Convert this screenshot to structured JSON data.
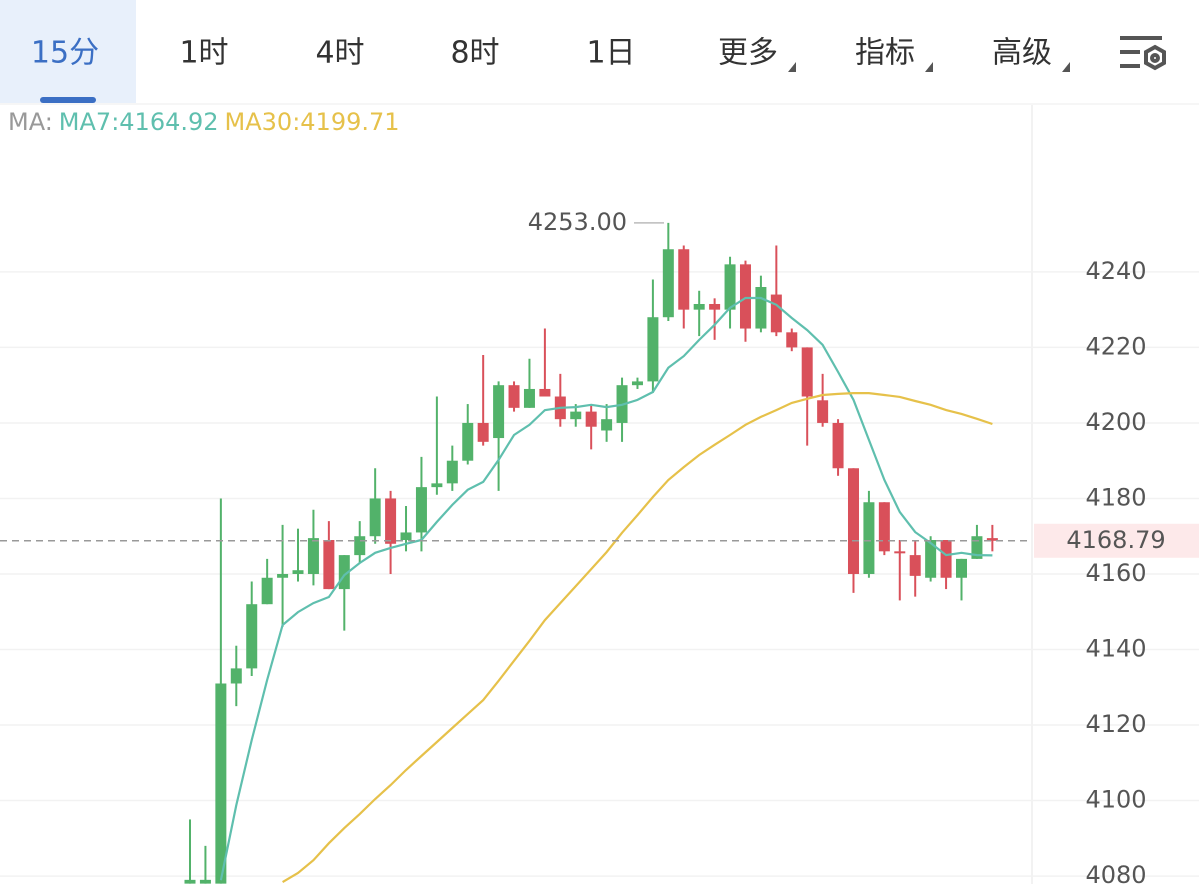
{
  "tabs": [
    "15分",
    "1时",
    "4时",
    "8时",
    "1日",
    "更多",
    "指标",
    "高级"
  ],
  "active_tab": 0,
  "chart_data": {
    "type": "candlestick",
    "ma_legend": {
      "prefix": "MA:",
      "items": [
        "MA7:4164.92",
        "MA30:4199.71"
      ]
    },
    "up_color": "#52b26a",
    "down_color": "#d9505a",
    "open": [
      4078,
      4078,
      4078,
      4131,
      4135,
      4152,
      4159,
      4160,
      4160,
      4169,
      4156,
      4165,
      4170,
      4180,
      4169,
      4171,
      4183,
      4184,
      4190,
      4200,
      4196,
      4210,
      4204,
      4209,
      4207,
      4201,
      4203,
      4198,
      4200,
      4210,
      4211,
      4228,
      4246,
      4230,
      4231.5,
      4230,
      4242,
      4225,
      4234,
      4224,
      4220,
      4206,
      4200,
      4188,
      4160,
      4179,
      4166,
      4165,
      4159,
      4169,
      4159,
      4164,
      4169.5
    ],
    "high": [
      4095,
      4088,
      4180,
      4141,
      4158,
      4164,
      4173,
      4172,
      4177,
      4174,
      4165,
      4174,
      4188,
      4182,
      4178,
      4191,
      4207,
      4194,
      4205,
      4218,
      4211,
      4211,
      4217,
      4225,
      4213,
      4205,
      4205,
      4205,
      4212,
      4212,
      4238,
      4253,
      4247,
      4235,
      4233,
      4244,
      4243,
      4239,
      4247,
      4225,
      4220,
      4213,
      4201,
      4188,
      4182,
      4179,
      4169,
      4169,
      4170,
      4169,
      4164,
      4173,
      4173
    ],
    "low": [
      4078,
      4078,
      4078,
      4125,
      4133,
      4152,
      4146,
      4158,
      4157,
      4156,
      4145,
      4163,
      4168,
      4160,
      4166,
      4166,
      4181,
      4182,
      4189,
      4194,
      4182,
      4203,
      4204,
      4207,
      4199,
      4199,
      4193,
      4195,
      4195,
      4209,
      4208,
      4227,
      4225,
      4223,
      4222,
      4225,
      4221.5,
      4224,
      4223,
      4219,
      4194,
      4199,
      4186,
      4155,
      4159,
      4165,
      4153,
      4154,
      4158,
      4156,
      4153,
      4164,
      4166
    ],
    "close": [
      4079,
      4079,
      4131,
      4135,
      4152,
      4159,
      4160,
      4161,
      4169.5,
      4156,
      4165,
      4170,
      4180,
      4168,
      4171,
      4183,
      4184,
      4190,
      4200,
      4195,
      4210,
      4204,
      4209,
      4207,
      4201,
      4203,
      4199,
      4201,
      4210,
      4211,
      4228,
      4246,
      4230,
      4231.5,
      4230,
      4242,
      4225,
      4236,
      4224,
      4220,
      4207,
      4200,
      4188,
      4160,
      4179,
      4166,
      4165.5,
      4159.5,
      4169,
      4159,
      4164,
      4170,
      4168.79
    ],
    "lines": [
      {
        "color": "#5fbfae",
        "values": [
          null,
          null,
          4078.9,
          4098.8,
          4116.0,
          4131.9,
          4146.5,
          4149.9,
          4152.3,
          4153.9,
          4159.7,
          4162.9,
          4165.6,
          4166.9,
          4168.0,
          4169.0,
          4173.8,
          4178.3,
          4182.3,
          4184.4,
          4190.2,
          4196.8,
          4199.5,
          4203.4,
          4204.0,
          4204.2,
          4204.8,
          4204.2,
          4204.8,
          4206.1,
          4208.2,
          4214.6,
          4217.7,
          4222.0,
          4226.0,
          4230.5,
          4233.1,
          4233.1,
          4231.3,
          4227.8,
          4224.6,
          4220.7,
          4213.5,
          4206.1,
          4195.5,
          4184.9,
          4176.4,
          4171.1,
          4168.2,
          4165.0,
          4165.6,
          4165.0,
          4164.92
        ]
      },
      {
        "color": "#e6c14a",
        "values": [
          null,
          null,
          null,
          null,
          null,
          null,
          4078.4,
          4080.8,
          4084.2,
          4088.7,
          4092.7,
          4096.4,
          4100.4,
          4104.1,
          4108.1,
          4111.8,
          4115.5,
          4119.2,
          4122.9,
          4126.6,
          4131.7,
          4137.0,
          4142.3,
          4147.8,
          4152.3,
          4156.8,
          4161.3,
          4165.8,
          4170.9,
          4175.6,
          4180.4,
          4184.9,
          4188.3,
          4191.5,
          4194.2,
          4196.8,
          4199.5,
          4201.6,
          4203.4,
          4205.3,
          4206.4,
          4207.4,
          4207.7,
          4207.9,
          4207.9,
          4207.4,
          4206.9,
          4205.8,
          4204.8,
          4203.4,
          4202.4,
          4201.1,
          4199.71
        ]
      }
    ],
    "max_annotation": {
      "value": 4253,
      "label": "4253.00"
    },
    "last_price": 4168.79,
    "ylim": [
      4077.9,
      4284.2
    ],
    "yticks": [
      4080,
      4100,
      4120,
      4140,
      4160,
      4180,
      4200,
      4220,
      4240
    ],
    "grid": true
  }
}
